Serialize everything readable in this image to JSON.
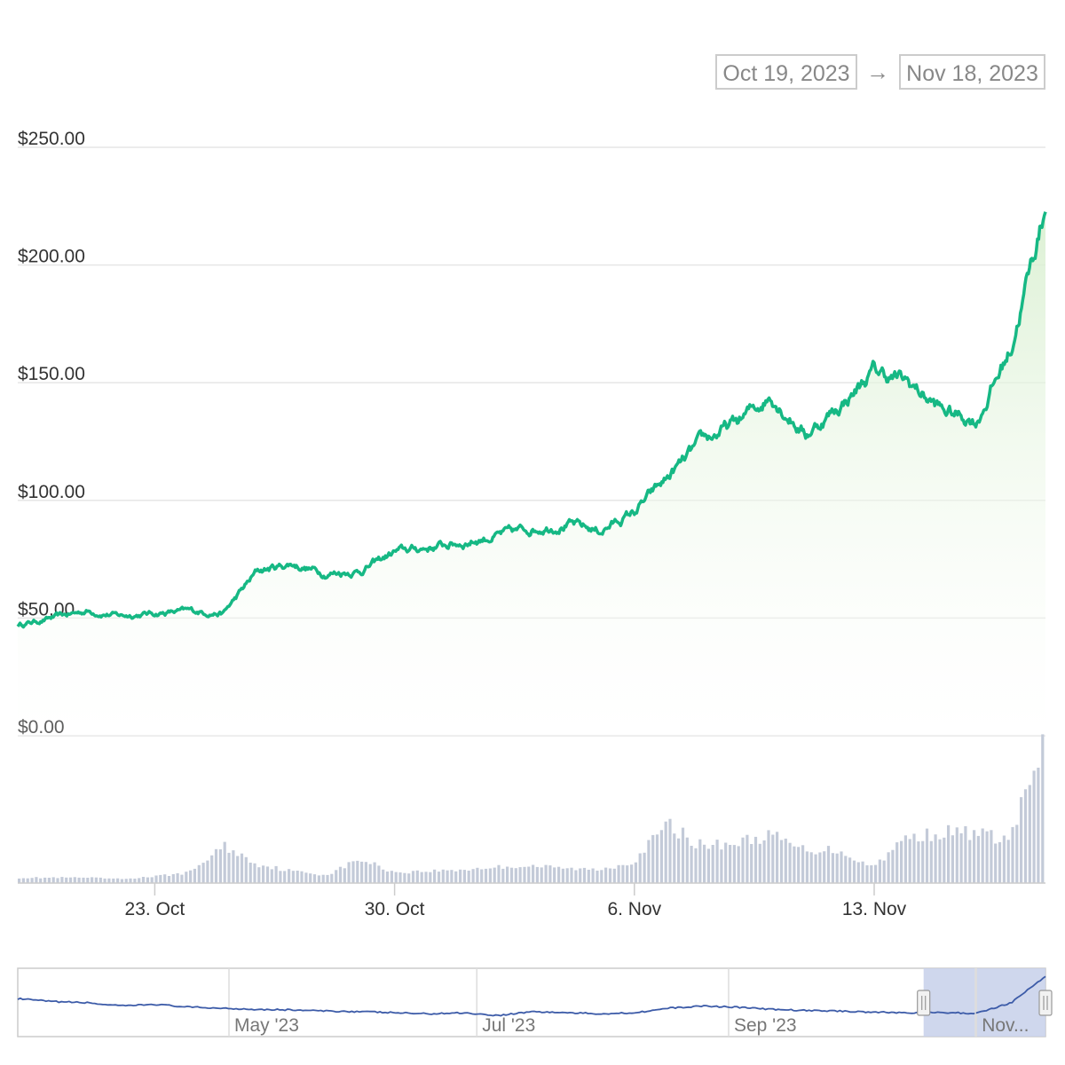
{
  "range_selector": {
    "from": "Oct 19, 2023",
    "to": "Nov 18, 2023",
    "arrow": "→"
  },
  "colors": {
    "price_line": "#16b884",
    "area_top": "#d8efcf",
    "volume": "#c3cad8",
    "navigator_line": "#3c5ba8",
    "navigator_mask": "#c7d0ea"
  },
  "chart_data": [
    {
      "type": "area",
      "x_range": [
        "2023-10-19",
        "2023-11-18"
      ],
      "ylim": [
        0,
        250
      ],
      "y_ticks": [
        "$0.00",
        "$50.00",
        "$100.00",
        "$150.00",
        "$200.00",
        "$250.00"
      ],
      "x_ticks": [
        "23. Oct",
        "30. Oct",
        "6. Nov",
        "13. Nov"
      ],
      "grid": true,
      "series": [
        {
          "x": [
            "2023-10-19",
            "2023-10-20",
            "2023-10-21",
            "2023-10-22",
            "2023-10-23",
            "2023-10-24",
            "2023-10-25",
            "2023-10-26",
            "2023-10-27",
            "2023-10-28",
            "2023-10-29",
            "2023-10-30",
            "2023-10-31",
            "2023-11-01",
            "2023-11-02",
            "2023-11-03",
            "2023-11-04",
            "2023-11-05",
            "2023-11-06",
            "2023-11-07",
            "2023-11-08",
            "2023-11-09",
            "2023-11-10",
            "2023-11-11",
            "2023-11-12",
            "2023-11-13",
            "2023-11-14",
            "2023-11-15",
            "2023-11-16",
            "2023-11-17",
            "2023-11-18"
          ],
          "values": [
            47,
            50,
            53,
            51,
            52,
            53,
            52,
            70,
            73,
            69,
            70,
            78,
            80,
            82,
            85,
            88,
            90,
            87,
            95,
            110,
            125,
            133,
            145,
            128,
            140,
            155,
            150,
            138,
            134,
            165,
            225
          ]
        }
      ]
    },
    {
      "type": "bar",
      "title": "",
      "volume_relative": [
        4,
        4,
        4,
        3,
        5,
        8,
        28,
        14,
        9,
        6,
        18,
        8,
        9,
        10,
        12,
        13,
        11,
        10,
        16,
        44,
        28,
        30,
        36,
        25,
        25,
        12,
        34,
        38,
        38,
        32,
        100
      ]
    },
    {
      "type": "line",
      "x_ticks": [
        "May '23",
        "Jul '23",
        "Sep '23",
        "Nov..."
      ],
      "x_range": [
        "2023-03-10",
        "2023-11-18"
      ],
      "selected_range": [
        "2023-10-19",
        "2023-11-18"
      ],
      "values_relative": [
        55,
        50,
        48,
        42,
        45,
        40,
        38,
        36,
        35,
        33,
        32,
        30,
        28,
        30,
        25,
        32,
        30,
        28,
        30,
        38,
        42,
        40,
        36,
        34,
        33,
        31,
        30,
        30,
        29,
        48,
        95
      ]
    }
  ]
}
